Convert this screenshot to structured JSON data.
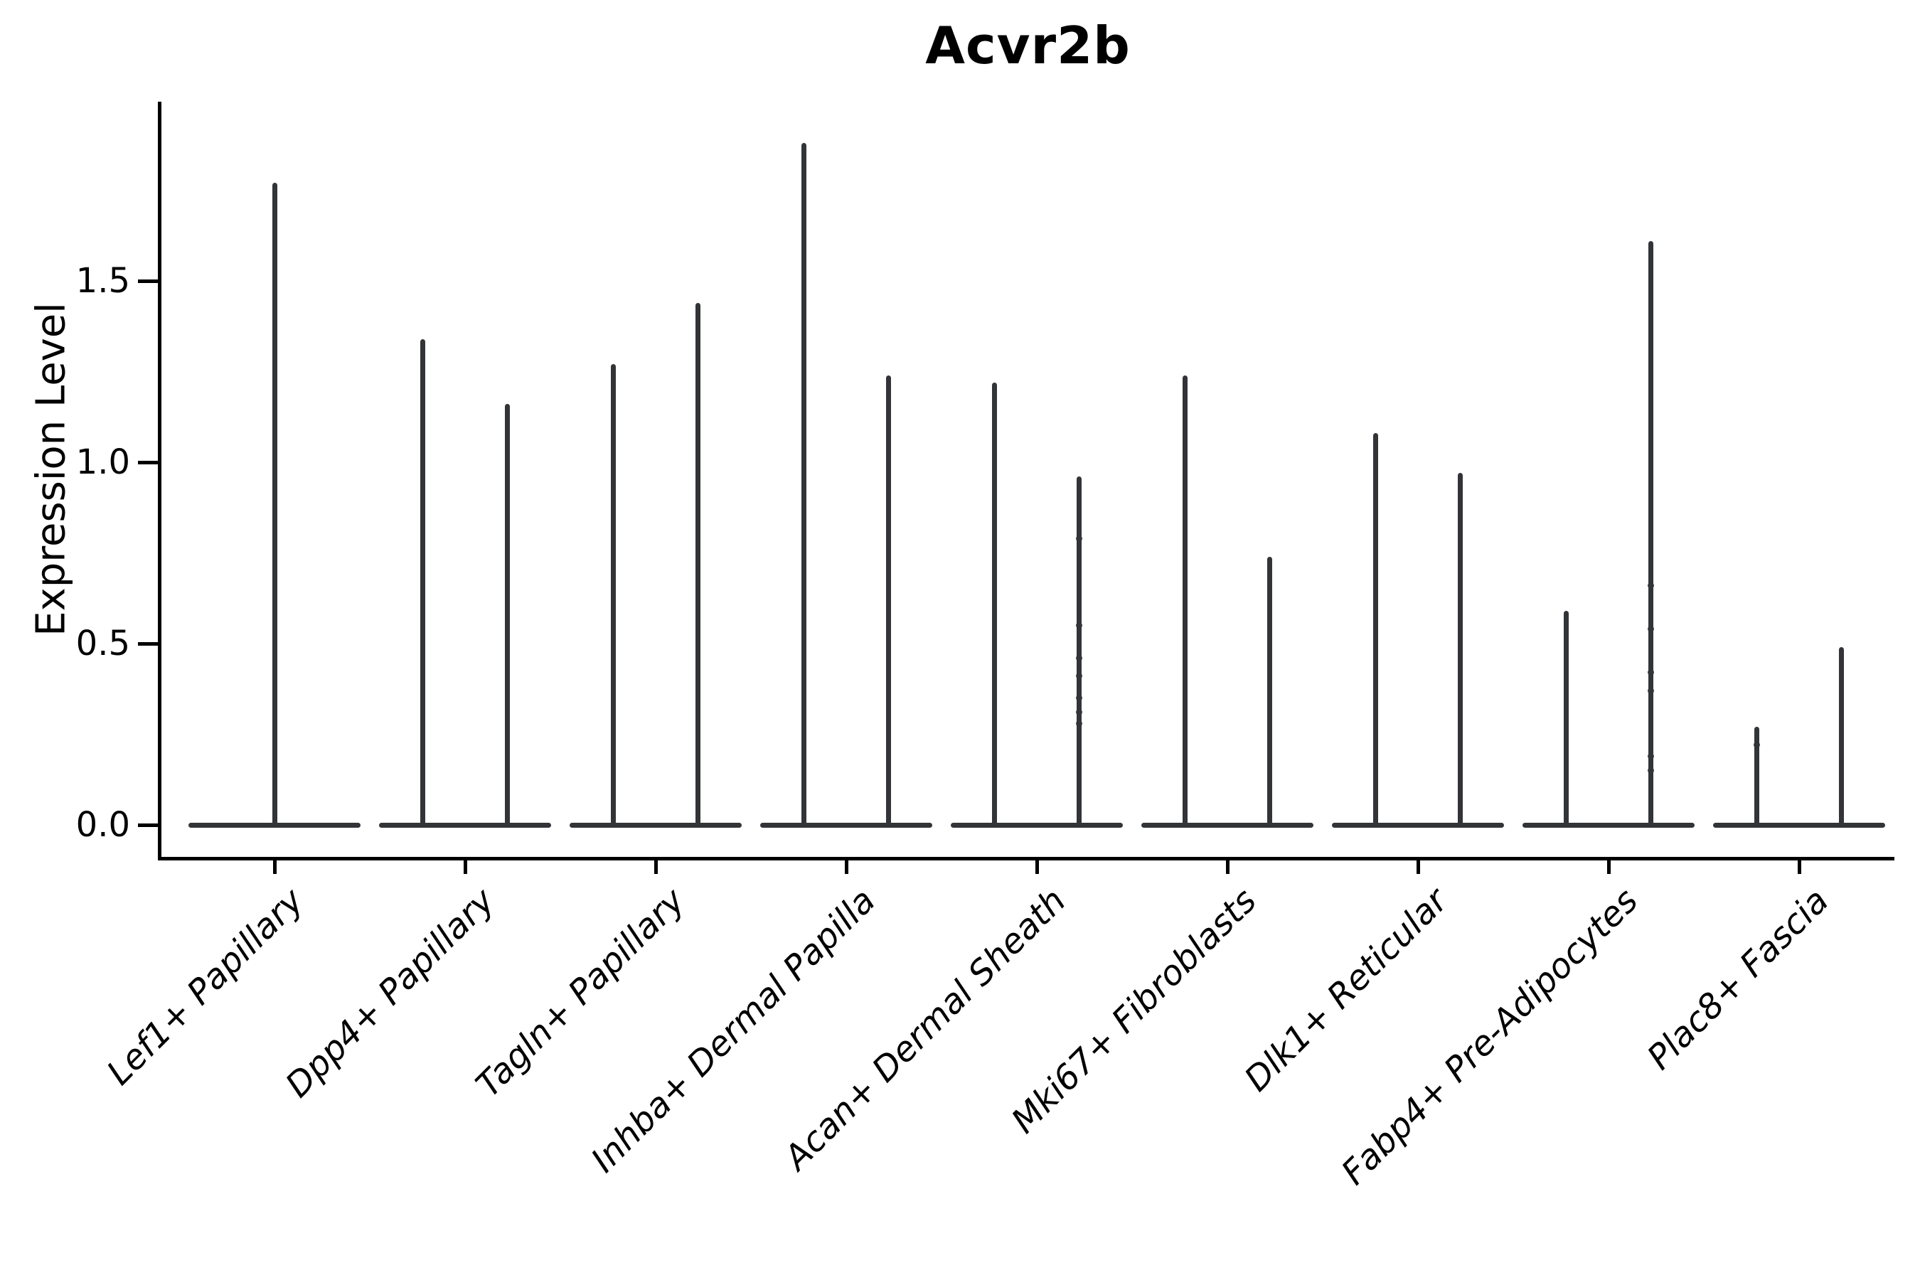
{
  "chart_data": {
    "type": "violin",
    "title": "Acvr2b",
    "xlabel": "",
    "ylabel": "Expression Level",
    "ylim": [
      0,
      2.0
    ],
    "yticks": [
      0.0,
      0.5,
      1.0,
      1.5
    ],
    "ytick_labels": [
      "0.0",
      "0.5",
      "1.0",
      "1.5"
    ],
    "grid": false,
    "legend_position": "none",
    "categories": [
      "Lef1+ Papillary",
      "Dpp4+ Papillary",
      "Tagln+ Papillary",
      "Inhba+ Dermal Papilla",
      "Acan+ Dermal Sheath",
      "Mki67+ Fibroblasts",
      "Dlk1+ Reticular",
      "Fabp4+ Pre-Adipocytes",
      "Plac8+ Fascia"
    ],
    "series": [
      {
        "category": "Lef1+ Papillary",
        "violins": [
          {
            "position": "center",
            "peak": 1.77,
            "dots": []
          }
        ]
      },
      {
        "category": "Dpp4+ Papillary",
        "violins": [
          {
            "position": "left",
            "peak": 1.34,
            "dots": []
          },
          {
            "position": "right",
            "peak": 1.16,
            "dots": []
          }
        ]
      },
      {
        "category": "Tagln+ Papillary",
        "violins": [
          {
            "position": "left",
            "peak": 1.27,
            "dots": []
          },
          {
            "position": "right",
            "peak": 1.44,
            "dots": []
          }
        ]
      },
      {
        "category": "Inhba+ Dermal Papilla",
        "violins": [
          {
            "position": "left",
            "peak": 1.88,
            "dots": []
          },
          {
            "position": "right",
            "peak": 1.24,
            "dots": []
          }
        ]
      },
      {
        "category": "Acan+ Dermal Sheath",
        "violins": [
          {
            "position": "left",
            "peak": 1.22,
            "dots": []
          },
          {
            "position": "right",
            "peak": 0.96,
            "dots": [
              0.79,
              0.55,
              0.46,
              0.41,
              0.35,
              0.31,
              0.28
            ]
          }
        ]
      },
      {
        "category": "Mki67+ Fibroblasts",
        "violins": [
          {
            "position": "left",
            "peak": 1.24,
            "dots": []
          },
          {
            "position": "right",
            "peak": 0.74,
            "dots": []
          }
        ]
      },
      {
        "category": "Dlk1+ Reticular",
        "violins": [
          {
            "position": "left",
            "peak": 1.08,
            "dots": []
          },
          {
            "position": "right",
            "peak": 0.97,
            "dots": []
          }
        ]
      },
      {
        "category": "Fabp4+ Pre-Adipocytes",
        "violins": [
          {
            "position": "left",
            "peak": 0.59,
            "dots": []
          },
          {
            "position": "right",
            "peak": 1.61,
            "dots": [
              0.66,
              0.54,
              0.42,
              0.37,
              0.19,
              0.15
            ]
          }
        ]
      },
      {
        "category": "Plac8+ Fascia",
        "violins": [
          {
            "position": "left",
            "peak": 0.27,
            "dots": [
              0.22
            ]
          },
          {
            "position": "right",
            "peak": 0.49,
            "dots": []
          }
        ]
      }
    ],
    "style": {
      "violin_color": "#323437",
      "spine_color": "#000000",
      "text_color": "#000000",
      "background_color": "#ffffff"
    }
  }
}
